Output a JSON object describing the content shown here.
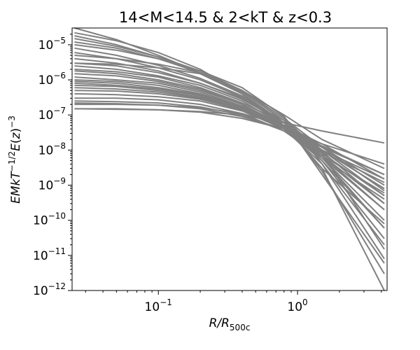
{
  "chart_data": {
    "type": "line",
    "title": "14<M<14.5 & 2<kT & z<0.3",
    "xlabel": "R/R_500c",
    "ylabel": "EM kT^-1/2 E(z)^-3",
    "xscale": "log",
    "yscale": "log",
    "xlim": [
      0.024,
      4.4
    ],
    "ylim": [
      1e-12,
      3e-05
    ],
    "x_ticks": [
      {
        "value": 0.1,
        "mantissa": "10",
        "exp": "−1"
      },
      {
        "value": 1,
        "mantissa": "10",
        "exp": "0"
      }
    ],
    "y_ticks": [
      {
        "value": 1e-05,
        "mantissa": "10",
        "exp": "−5"
      },
      {
        "value": 1e-06,
        "mantissa": "10",
        "exp": "−6"
      },
      {
        "value": 1e-07,
        "mantissa": "10",
        "exp": "−7"
      },
      {
        "value": 1e-08,
        "mantissa": "10",
        "exp": "−8"
      },
      {
        "value": 1e-09,
        "mantissa": "10",
        "exp": "−9"
      },
      {
        "value": 1e-10,
        "mantissa": "10",
        "exp": "−10"
      },
      {
        "value": 1e-11,
        "mantissa": "10",
        "exp": "−11"
      },
      {
        "value": 1e-12,
        "mantissa": "10",
        "exp": "−12"
      }
    ],
    "line_color": "#808080",
    "grid": false,
    "series": [
      {
        "x": [
          0.025,
          0.05,
          0.1,
          0.2,
          0.4,
          0.8,
          1.5,
          4.2
        ],
        "y": [
          3e-05,
          1.4e-05,
          5e-06,
          1.6e-06,
          4e-07,
          6e-08,
          6e-09,
          6e-11
        ]
      },
      {
        "x": [
          0.025,
          0.05,
          0.1,
          0.2,
          0.4,
          0.8,
          1.5,
          4.2
        ],
        "y": [
          2.2e-05,
          1.3e-05,
          6e-06,
          2e-06,
          4e-07,
          5e-08,
          3e-09,
          1e-12
        ]
      },
      {
        "x": [
          0.025,
          0.05,
          0.1,
          0.2,
          0.4,
          0.8,
          1.5,
          4.2
        ],
        "y": [
          1.5e-05,
          9e-06,
          4.5e-06,
          1.8e-06,
          5e-07,
          8e-08,
          8e-09,
          1.5e-11
        ]
      },
      {
        "x": [
          0.025,
          0.05,
          0.1,
          0.2,
          0.4,
          0.8,
          1.5,
          4.2
        ],
        "y": [
          1.2e-05,
          8e-06,
          4e-06,
          1.6e-06,
          4.5e-07,
          7e-08,
          2e-09,
          6e-12
        ]
      },
      {
        "x": [
          0.025,
          0.05,
          0.1,
          0.2,
          0.4,
          0.8,
          1.5,
          4.2
        ],
        "y": [
          8e-06,
          5e-06,
          2.6e-06,
          1.1e-06,
          3.5e-07,
          6e-08,
          5e-09,
          3e-11
        ]
      },
      {
        "x": [
          0.025,
          0.05,
          0.1,
          0.2,
          0.4,
          0.8,
          1.5,
          4.2
        ],
        "y": [
          6e-06,
          4e-06,
          2.2e-06,
          1e-06,
          3.2e-07,
          5e-08,
          3e-09,
          8e-11
        ]
      },
      {
        "x": [
          0.025,
          0.05,
          0.1,
          0.2,
          0.4,
          0.8,
          1.5,
          4.2
        ],
        "y": [
          4e-06,
          3e-06,
          1.8e-06,
          8e-07,
          2.8e-07,
          6e-08,
          7e-09,
          2e-10
        ]
      },
      {
        "x": [
          0.025,
          0.05,
          0.1,
          0.2,
          0.4,
          0.8,
          1.5,
          4.2
        ],
        "y": [
          3e-06,
          2.5e-06,
          1.6e-06,
          8e-07,
          3e-07,
          7e-08,
          1e-08,
          5e-10
        ]
      },
      {
        "x": [
          0.025,
          0.05,
          0.1,
          0.2,
          0.4,
          0.8,
          1.5,
          4.2
        ],
        "y": [
          2.5e-06,
          2e-06,
          1.3e-06,
          7e-07,
          2.5e-07,
          5e-08,
          6e-09,
          1e-10
        ]
      },
      {
        "x": [
          0.025,
          0.05,
          0.1,
          0.2,
          0.4,
          0.8,
          1.5,
          4.2
        ],
        "y": [
          2e-06,
          1.7e-06,
          1.2e-06,
          6e-07,
          2.2e-07,
          6e-08,
          1.2e-08,
          1e-09
        ]
      },
      {
        "x": [
          0.025,
          0.05,
          0.1,
          0.2,
          0.4,
          0.8,
          1.5,
          4.2
        ],
        "y": [
          1.5e-06,
          1.3e-06,
          9e-07,
          5e-07,
          2e-07,
          5e-08,
          9e-09,
          3e-10
        ]
      },
      {
        "x": [
          0.025,
          0.05,
          0.1,
          0.2,
          0.4,
          0.8,
          1.5,
          4.2
        ],
        "y": [
          1.2e-06,
          1e-06,
          8e-07,
          4.5e-07,
          1.8e-07,
          5e-08,
          1e-08,
          1.5e-09
        ]
      },
      {
        "x": [
          0.025,
          0.05,
          0.1,
          0.2,
          0.4,
          0.8,
          1.5,
          4.2
        ],
        "y": [
          1e-06,
          9e-07,
          7e-07,
          4e-07,
          1.7e-07,
          4e-08,
          6e-09,
          2e-10
        ]
      },
      {
        "x": [
          0.025,
          0.05,
          0.1,
          0.2,
          0.4,
          0.8,
          1.5,
          4.2
        ],
        "y": [
          8e-07,
          7e-07,
          5.5e-07,
          3.5e-07,
          1.6e-07,
          5e-08,
          1.3e-08,
          2e-09
        ]
      },
      {
        "x": [
          0.025,
          0.05,
          0.1,
          0.2,
          0.4,
          0.8,
          1.5,
          4.2
        ],
        "y": [
          7e-07,
          6.5e-07,
          5e-07,
          3.2e-07,
          1.5e-07,
          4.5e-08,
          8e-09,
          5e-10
        ]
      },
      {
        "x": [
          0.025,
          0.05,
          0.1,
          0.2,
          0.4,
          0.8,
          1.5,
          4.2
        ],
        "y": [
          6e-07,
          5.5e-07,
          4.5e-07,
          3e-07,
          1.4e-07,
          4e-08,
          5e-09,
          6e-11
        ]
      },
      {
        "x": [
          0.025,
          0.05,
          0.1,
          0.2,
          0.4,
          0.8,
          1.5,
          4.2
        ],
        "y": [
          5e-07,
          4.8e-07,
          4e-07,
          2.8e-07,
          1.4e-07,
          4.5e-08,
          1e-08,
          8e-10
        ]
      },
      {
        "x": [
          0.025,
          0.05,
          0.1,
          0.2,
          0.4,
          0.8,
          1.5,
          4.2
        ],
        "y": [
          4e-07,
          3.8e-07,
          3.3e-07,
          2.5e-07,
          1.3e-07,
          4e-08,
          7e-09,
          3e-10
        ]
      },
      {
        "x": [
          0.025,
          0.05,
          0.1,
          0.2,
          0.4,
          0.8,
          1.5,
          4.2
        ],
        "y": [
          3e-07,
          3e-07,
          2.7e-07,
          2e-07,
          1.1e-07,
          3.5e-08,
          6e-09,
          4e-10
        ]
      },
      {
        "x": [
          0.025,
          0.05,
          0.1,
          0.2,
          0.4,
          0.8,
          1.5,
          4.2
        ],
        "y": [
          2.5e-07,
          2.4e-07,
          2.2e-07,
          1.7e-07,
          1e-07,
          3.5e-08,
          7e-09,
          6e-10
        ]
      },
      {
        "x": [
          0.025,
          0.05,
          0.1,
          0.2,
          0.4,
          0.8,
          1.5,
          4.2
        ],
        "y": [
          2e-07,
          2e-07,
          1.9e-07,
          1.6e-07,
          1.1e-07,
          5e-08,
          1.5e-08,
          1.5e-09
        ]
      },
      {
        "x": [
          0.025,
          0.05,
          0.1,
          0.2,
          0.4,
          0.8,
          1.5,
          4.2
        ],
        "y": [
          1.5e-07,
          1.5e-07,
          1.4e-07,
          1.2e-07,
          8e-08,
          4e-08,
          1.2e-08,
          2e-09
        ]
      },
      {
        "x": [
          0.025,
          0.05,
          0.1,
          0.2,
          0.4,
          0.8,
          1.5,
          4.2
        ],
        "y": [
          1.5e-07,
          1.45e-07,
          1.4e-07,
          1.25e-07,
          1e-07,
          6e-08,
          3.5e-08,
          1.6e-08
        ]
      },
      {
        "x": [
          0.025,
          0.05,
          0.1,
          0.2,
          0.4,
          0.8,
          1.5,
          4.2
        ],
        "y": [
          2.2e-07,
          2.1e-07,
          1.9e-07,
          1.5e-07,
          9e-08,
          4e-08,
          1.5e-08,
          4e-09
        ]
      },
      {
        "x": [
          0.025,
          0.05,
          0.1,
          0.2,
          0.4,
          0.8,
          1.5,
          4.2
        ],
        "y": [
          3e-06,
          2.8e-06,
          2.2e-06,
          1.5e-06,
          5e-07,
          1e-07,
          2e-08,
          3e-09
        ]
      },
      {
        "x": [
          0.025,
          0.05,
          0.1,
          0.2,
          0.4,
          0.8,
          1.5,
          4.2
        ],
        "y": [
          5e-06,
          4e-06,
          2.8e-06,
          1.6e-06,
          5e-07,
          8e-08,
          1.2e-08,
          7e-10
        ]
      },
      {
        "x": [
          0.025,
          0.05,
          0.1,
          0.2,
          0.4,
          0.8,
          1.5,
          4.2
        ],
        "y": [
          1e-05,
          7e-06,
          4e-06,
          1.8e-06,
          6e-07,
          9e-08,
          4e-09,
          8e-12
        ]
      },
      {
        "x": [
          0.025,
          0.05,
          0.1,
          0.2,
          0.4,
          0.8,
          1.5,
          4.2
        ],
        "y": [
          1.8e-05,
          1e-05,
          4.5e-06,
          1.5e-06,
          4e-07,
          6e-08,
          2.5e-09,
          3e-12
        ]
      },
      {
        "x": [
          0.025,
          0.05,
          0.1,
          0.2,
          0.4,
          0.8,
          1.5,
          4.2
        ],
        "y": [
          9e-07,
          8e-07,
          6e-07,
          3.8e-07,
          1.7e-07,
          4.5e-08,
          9e-09,
          1.2e-09
        ]
      },
      {
        "x": [
          0.025,
          0.05,
          0.1,
          0.2,
          0.4,
          0.8,
          1.5,
          4.2
        ],
        "y": [
          1.8e-06,
          1.5e-06,
          1e-06,
          5.5e-07,
          2e-07,
          4e-08,
          4e-09,
          2e-11
        ]
      }
    ]
  }
}
